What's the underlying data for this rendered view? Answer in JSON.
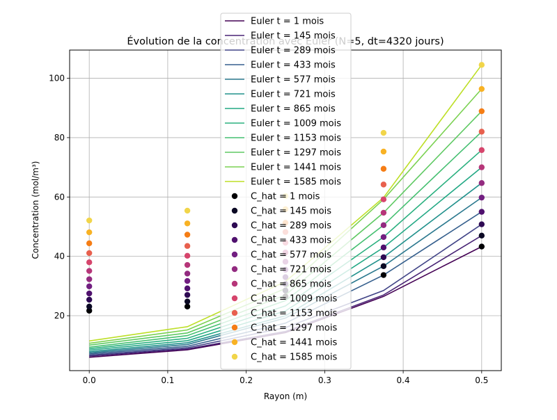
{
  "chart_data": {
    "type": "line",
    "title": "Évolution de la concentration avec Euler (N=5, dt=4320 jours)",
    "xlabel": "Rayon (m)",
    "ylabel": "Concentration (mol/m³)",
    "xlim": [
      -0.025,
      0.525
    ],
    "ylim": [
      1.5,
      109.5
    ],
    "grid": true,
    "legend_position": "top-center",
    "x": [
      0.0,
      0.125,
      0.25,
      0.375,
      0.5
    ],
    "x_ticks": [
      {
        "v": 0.0,
        "label": "0.0"
      },
      {
        "v": 0.1,
        "label": "0.1"
      },
      {
        "v": 0.2,
        "label": "0.2"
      },
      {
        "v": 0.3,
        "label": "0.3"
      },
      {
        "v": 0.4,
        "label": "0.4"
      },
      {
        "v": 0.5,
        "label": "0.5"
      }
    ],
    "y_ticks": [
      {
        "v": 20,
        "label": "20"
      },
      {
        "v": 40,
        "label": "40"
      },
      {
        "v": 60,
        "label": "60"
      },
      {
        "v": 80,
        "label": "80"
      },
      {
        "v": 100,
        "label": "100"
      }
    ],
    "line_series": [
      {
        "name": "Euler t = 1 mois",
        "color": "#440154",
        "values": [
          6.0,
          8.5,
          14.3,
          26.5,
          43.3
        ]
      },
      {
        "name": "Euler t = 145 mois",
        "color": "#482475",
        "values": [
          6.4,
          8.8,
          14.7,
          27.0,
          47.0
        ]
      },
      {
        "name": "Euler t = 289 mois",
        "color": "#414487",
        "values": [
          6.7,
          9.2,
          16.0,
          28.5,
          50.8
        ]
      },
      {
        "name": "Euler t = 433 mois",
        "color": "#355f8d",
        "values": [
          7.1,
          9.7,
          17.5,
          33.7,
          55.0
        ]
      },
      {
        "name": "Euler t = 577 mois",
        "color": "#2a788e",
        "values": [
          7.5,
          10.3,
          19.2,
          36.7,
          59.8
        ]
      },
      {
        "name": "Euler t = 721 mois",
        "color": "#21918c",
        "values": [
          7.9,
          10.9,
          20.0,
          39.7,
          64.7
        ]
      },
      {
        "name": "Euler t = 865 mois",
        "color": "#22a884",
        "values": [
          8.4,
          11.6,
          21.6,
          43.0,
          70.0
        ]
      },
      {
        "name": "Euler t = 1009 mois",
        "color": "#2ab07f",
        "values": [
          8.9,
          12.4,
          23.3,
          46.5,
          75.8
        ]
      },
      {
        "name": "Euler t = 1153 mois",
        "color": "#44bf70",
        "values": [
          9.4,
          13.3,
          25.1,
          50.5,
          82.0
        ]
      },
      {
        "name": "Euler t = 1297 mois",
        "color": "#5ec962",
        "values": [
          10.1,
          14.2,
          27.0,
          54.7,
          88.9
        ]
      },
      {
        "name": "Euler t = 1441 mois",
        "color": "#7ad151",
        "values": [
          10.7,
          15.2,
          29.2,
          59.2,
          96.4
        ]
      },
      {
        "name": "Euler t = 1585 mois",
        "color": "#bddf26",
        "values": [
          11.5,
          16.3,
          31.5,
          59.8,
          104.5
        ]
      }
    ],
    "scatter_series": [
      {
        "name": "C_hat = 1 mois",
        "color": "#000004",
        "values": [
          21.7,
          23.1,
          26.5,
          33.7,
          43.3
        ]
      },
      {
        "name": "C_hat = 145 mois",
        "color": "#0b0924",
        "values": [
          23.1,
          24.8,
          28.5,
          36.7,
          47.0
        ]
      },
      {
        "name": "C_hat = 289 mois",
        "color": "#2e0a53",
        "values": [
          25.4,
          27.0,
          30.7,
          39.7,
          50.8
        ]
      },
      {
        "name": "C_hat = 433 mois",
        "color": "#50116e",
        "values": [
          27.5,
          29.2,
          33.0,
          43.0,
          55.0
        ]
      },
      {
        "name": "C_hat = 577 mois",
        "color": "#721f81",
        "values": [
          29.9,
          31.7,
          35.5,
          46.5,
          59.8
        ]
      },
      {
        "name": "C_hat = 721 mois",
        "color": "#932b80",
        "values": [
          32.3,
          34.2,
          38.2,
          50.5,
          64.7
        ]
      },
      {
        "name": "C_hat = 865 mois",
        "color": "#b63679",
        "values": [
          35.1,
          37.1,
          41.3,
          54.7,
          70.0
        ]
      },
      {
        "name": "C_hat = 1009 mois",
        "color": "#d6456c",
        "values": [
          38.0,
          40.2,
          44.6,
          59.2,
          75.8
        ]
      },
      {
        "name": "C_hat = 1153 mois",
        "color": "#e8604e",
        "values": [
          41.1,
          43.5,
          48.2,
          64.2,
          82.0
        ]
      },
      {
        "name": "C_hat = 1297 mois",
        "color": "#f57d15",
        "values": [
          44.4,
          47.3,
          51.3,
          69.5,
          88.9
        ]
      },
      {
        "name": "C_hat = 1441 mois",
        "color": "#f8b224",
        "values": [
          48.1,
          51.1,
          55.9,
          75.3,
          96.4
        ]
      },
      {
        "name": "C_hat = 1585 mois",
        "color": "#f1d54a",
        "values": [
          52.1,
          55.4,
          60.3,
          81.6,
          104.5
        ]
      }
    ]
  }
}
